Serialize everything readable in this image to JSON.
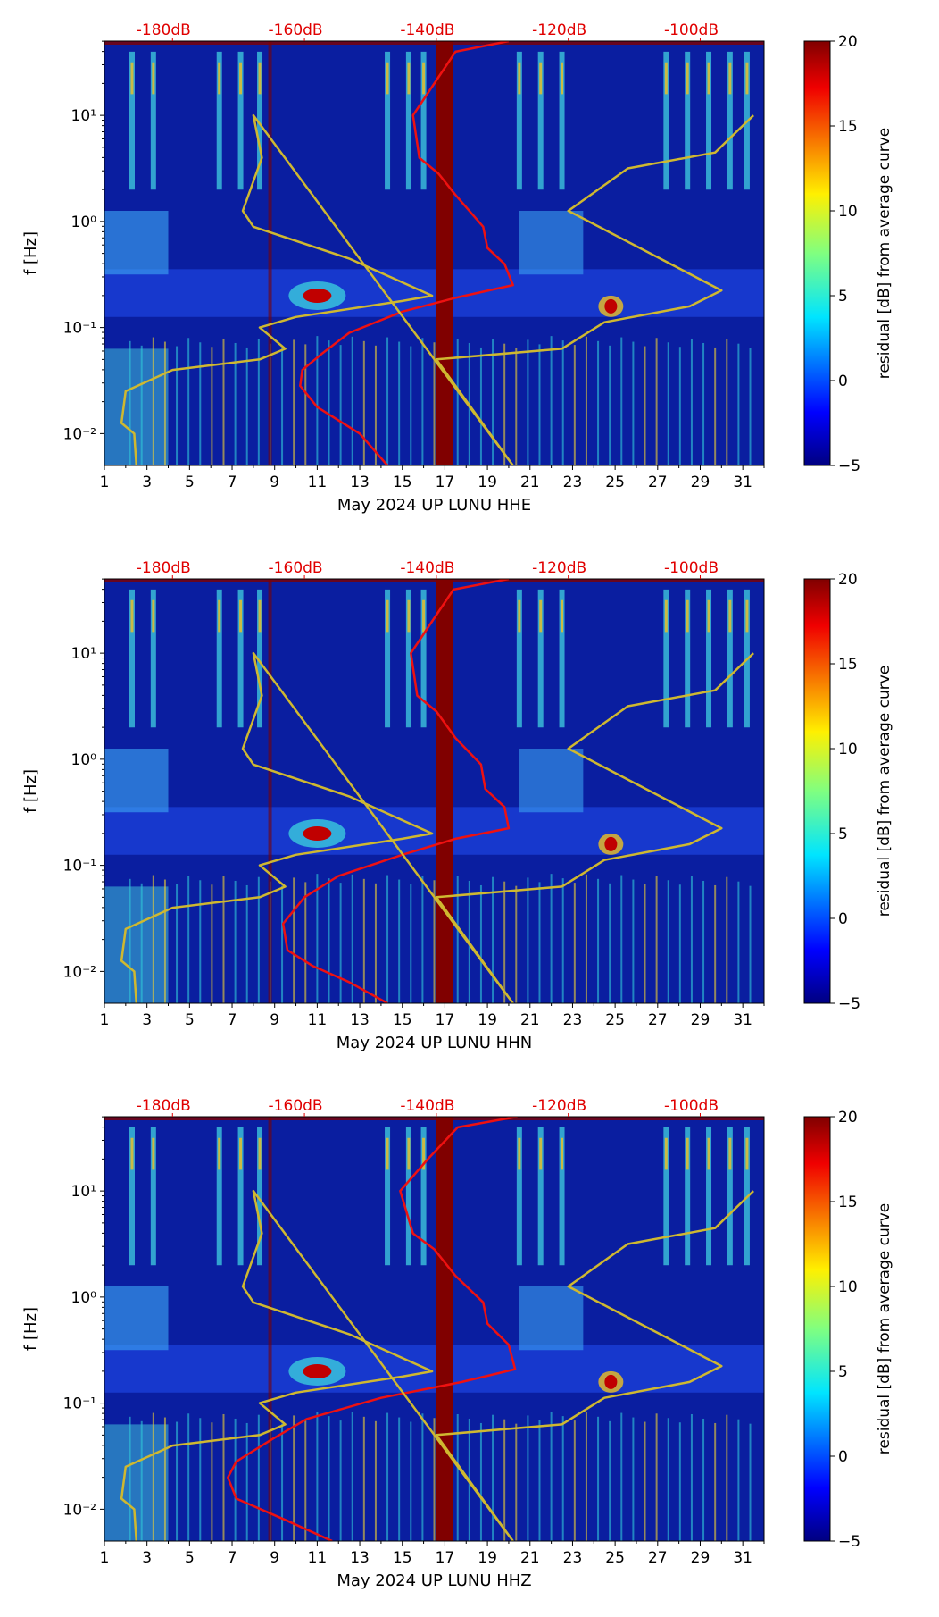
{
  "chart_data": [
    {
      "type": "heatmap",
      "xlabel": "May 2024 UP LUNU  HHE",
      "ylabel": "f [Hz]",
      "x_range": [
        1,
        32
      ],
      "y_range_log10": [
        -2.3,
        1.7
      ],
      "x_ticks": [
        "1",
        "3",
        "5",
        "7",
        "9",
        "11",
        "13",
        "15",
        "17",
        "19",
        "21",
        "23",
        "25",
        "27",
        "29",
        "31"
      ],
      "y_ticks": [
        "10⁻²",
        "10⁻¹",
        "10⁰",
        "10¹"
      ],
      "top_axis_labels": [
        "-180dB",
        "-160dB",
        "-140dB",
        "-120dB",
        "-100dB"
      ],
      "top_axis_positions": [
        4.2,
        10.4,
        16.6,
        22.8,
        29.0
      ],
      "colorbar": {
        "label": "residual [dB] from average curve",
        "min": -5,
        "max": 20,
        "ticks": [
          "20",
          "15",
          "10",
          "5",
          "0",
          "−5"
        ]
      },
      "series": [
        {
          "name": "average PSD (red)",
          "color": "#ee1111",
          "points": [
            [
              14.3,
              -2.3
            ],
            [
              13.0,
              -2.0
            ],
            [
              11.0,
              -1.75
            ],
            [
              10.2,
              -1.55
            ],
            [
              10.3,
              -1.4
            ],
            [
              11.2,
              -1.25
            ],
            [
              12.5,
              -1.05
            ],
            [
              15.0,
              -0.85
            ],
            [
              17.5,
              -0.72
            ],
            [
              20.2,
              -0.6
            ],
            [
              19.8,
              -0.4
            ],
            [
              19.0,
              -0.25
            ],
            [
              18.8,
              -0.05
            ],
            [
              17.5,
              0.25
            ],
            [
              16.7,
              0.45
            ],
            [
              15.8,
              0.6
            ],
            [
              15.5,
              1.0
            ],
            [
              16.5,
              1.3
            ],
            [
              17.5,
              1.6
            ],
            [
              20.0,
              1.7
            ]
          ]
        },
        {
          "name": "noise model (yellow)",
          "color": "#cfb830",
          "points": [
            [
              2.5,
              -2.3
            ],
            [
              2.4,
              -2.0
            ],
            [
              1.8,
              -1.9
            ],
            [
              2.0,
              -1.6
            ],
            [
              4.2,
              -1.4
            ],
            [
              8.3,
              -1.3
            ],
            [
              9.5,
              -1.2
            ],
            [
              8.3,
              -1.0
            ],
            [
              10.0,
              -0.9
            ],
            [
              15.0,
              -0.75
            ],
            [
              16.4,
              -0.7
            ],
            [
              12.5,
              -0.35
            ],
            [
              8.0,
              -0.05
            ],
            [
              7.5,
              0.1
            ],
            [
              8.4,
              0.6
            ],
            [
              8.0,
              1.0
            ],
            [
              20.2,
              -2.3
            ],
            [
              16.6,
              -1.3
            ],
            [
              22.5,
              -1.2
            ],
            [
              24.5,
              -0.95
            ],
            [
              28.5,
              -0.8
            ],
            [
              30.0,
              -0.65
            ],
            [
              22.8,
              0.1
            ],
            [
              25.6,
              0.5
            ],
            [
              29.7,
              0.65
            ],
            [
              31.5,
              1.0
            ]
          ]
        }
      ]
    },
    {
      "type": "heatmap",
      "xlabel": "May 2024 UP LUNU  HHN",
      "ylabel": "f [Hz]",
      "x_range": [
        1,
        32
      ],
      "y_range_log10": [
        -2.3,
        1.7
      ],
      "x_ticks": [
        "1",
        "3",
        "5",
        "7",
        "9",
        "11",
        "13",
        "15",
        "17",
        "19",
        "21",
        "23",
        "25",
        "27",
        "29",
        "31"
      ],
      "y_ticks": [
        "10⁻²",
        "10⁻¹",
        "10⁰",
        "10¹"
      ],
      "top_axis_labels": [
        "-180dB",
        "-160dB",
        "-140dB",
        "-120dB",
        "-100dB"
      ],
      "top_axis_positions": [
        4.2,
        10.4,
        16.6,
        22.8,
        29.0
      ],
      "colorbar": {
        "label": "residual [dB] from average curve",
        "min": -5,
        "max": 20,
        "ticks": [
          "20",
          "15",
          "10",
          "5",
          "0",
          "−5"
        ]
      },
      "series": [
        {
          "name": "average PSD (red)",
          "color": "#ee1111",
          "points": [
            [
              14.3,
              -2.3
            ],
            [
              12.5,
              -2.1
            ],
            [
              10.8,
              -1.95
            ],
            [
              9.6,
              -1.8
            ],
            [
              9.4,
              -1.55
            ],
            [
              10.4,
              -1.3
            ],
            [
              12.0,
              -1.1
            ],
            [
              15.0,
              -0.9
            ],
            [
              17.5,
              -0.75
            ],
            [
              20.0,
              -0.65
            ],
            [
              19.8,
              -0.45
            ],
            [
              18.9,
              -0.28
            ],
            [
              18.7,
              -0.05
            ],
            [
              17.5,
              0.2
            ],
            [
              16.6,
              0.45
            ],
            [
              15.7,
              0.6
            ],
            [
              15.4,
              1.0
            ],
            [
              16.4,
              1.3
            ],
            [
              17.4,
              1.6
            ],
            [
              20.0,
              1.7
            ]
          ]
        },
        {
          "name": "noise model (yellow)",
          "color": "#cfb830",
          "points": [
            [
              2.5,
              -2.3
            ],
            [
              2.4,
              -2.0
            ],
            [
              1.8,
              -1.9
            ],
            [
              2.0,
              -1.6
            ],
            [
              4.2,
              -1.4
            ],
            [
              8.3,
              -1.3
            ],
            [
              9.5,
              -1.2
            ],
            [
              8.3,
              -1.0
            ],
            [
              10.0,
              -0.9
            ],
            [
              15.0,
              -0.75
            ],
            [
              16.4,
              -0.7
            ],
            [
              12.5,
              -0.35
            ],
            [
              8.0,
              -0.05
            ],
            [
              7.5,
              0.1
            ],
            [
              8.4,
              0.6
            ],
            [
              8.0,
              1.0
            ],
            [
              20.2,
              -2.3
            ],
            [
              16.6,
              -1.3
            ],
            [
              22.5,
              -1.2
            ],
            [
              24.5,
              -0.95
            ],
            [
              28.5,
              -0.8
            ],
            [
              30.0,
              -0.65
            ],
            [
              22.8,
              0.1
            ],
            [
              25.6,
              0.5
            ],
            [
              29.7,
              0.65
            ],
            [
              31.5,
              1.0
            ]
          ]
        }
      ]
    },
    {
      "type": "heatmap",
      "xlabel": "May 2024 UP LUNU  HHZ",
      "ylabel": "f [Hz]",
      "x_range": [
        1,
        32
      ],
      "y_range_log10": [
        -2.3,
        1.7
      ],
      "x_ticks": [
        "1",
        "3",
        "5",
        "7",
        "9",
        "11",
        "13",
        "15",
        "17",
        "19",
        "21",
        "23",
        "25",
        "27",
        "29",
        "31"
      ],
      "y_ticks": [
        "10⁻²",
        "10⁻¹",
        "10⁰",
        "10¹"
      ],
      "top_axis_labels": [
        "-180dB",
        "-160dB",
        "-140dB",
        "-120dB",
        "-100dB"
      ],
      "top_axis_positions": [
        4.2,
        10.4,
        16.6,
        22.8,
        29.0
      ],
      "colorbar": {
        "label": "residual [dB] from average curve",
        "min": -5,
        "max": 20,
        "ticks": [
          "20",
          "15",
          "10",
          "5",
          "0",
          "−5"
        ]
      },
      "series": [
        {
          "name": "average PSD (red)",
          "color": "#ee1111",
          "points": [
            [
              11.7,
              -2.3
            ],
            [
              9.5,
              -2.1
            ],
            [
              7.2,
              -1.9
            ],
            [
              6.8,
              -1.7
            ],
            [
              7.2,
              -1.55
            ],
            [
              8.8,
              -1.35
            ],
            [
              10.5,
              -1.15
            ],
            [
              14.0,
              -0.95
            ],
            [
              17.8,
              -0.8
            ],
            [
              20.3,
              -0.68
            ],
            [
              20.0,
              -0.45
            ],
            [
              19.0,
              -0.25
            ],
            [
              18.8,
              -0.05
            ],
            [
              17.5,
              0.2
            ],
            [
              16.5,
              0.45
            ],
            [
              15.5,
              0.6
            ],
            [
              14.9,
              1.0
            ],
            [
              16.2,
              1.3
            ],
            [
              17.6,
              1.6
            ],
            [
              20.4,
              1.7
            ]
          ]
        },
        {
          "name": "noise model (yellow)",
          "color": "#cfb830",
          "points": [
            [
              2.5,
              -2.3
            ],
            [
              2.4,
              -2.0
            ],
            [
              1.8,
              -1.9
            ],
            [
              2.0,
              -1.6
            ],
            [
              4.2,
              -1.4
            ],
            [
              8.3,
              -1.3
            ],
            [
              9.5,
              -1.2
            ],
            [
              8.3,
              -1.0
            ],
            [
              10.0,
              -0.9
            ],
            [
              15.0,
              -0.75
            ],
            [
              16.4,
              -0.7
            ],
            [
              12.5,
              -0.35
            ],
            [
              8.0,
              -0.05
            ],
            [
              7.5,
              0.1
            ],
            [
              8.4,
              0.6
            ],
            [
              8.0,
              1.0
            ],
            [
              20.2,
              -2.3
            ],
            [
              16.6,
              -1.3
            ],
            [
              22.5,
              -1.2
            ],
            [
              24.5,
              -0.95
            ],
            [
              28.5,
              -0.8
            ],
            [
              30.0,
              -0.65
            ],
            [
              22.8,
              0.1
            ],
            [
              25.6,
              0.5
            ],
            [
              29.7,
              0.65
            ],
            [
              31.5,
              1.0
            ]
          ]
        }
      ]
    }
  ]
}
